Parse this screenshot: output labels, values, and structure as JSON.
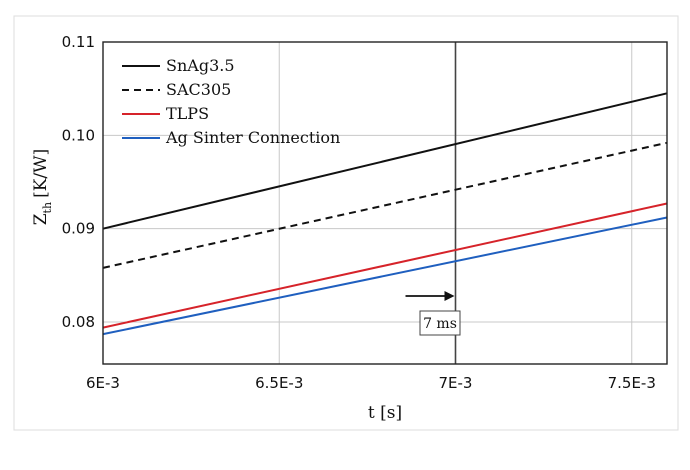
{
  "chart_data": {
    "type": "line",
    "title": "",
    "xlabel": "t [s]",
    "ylabel_main": "Z",
    "ylabel_sub": "th",
    "ylabel_unit": "[K/W]",
    "xlim": [
      0.006,
      0.0076
    ],
    "ylim": [
      0.0755,
      0.11
    ],
    "xticks": [
      0.006,
      0.0065,
      0.007,
      0.0075
    ],
    "xtick_labels": [
      "6E-3",
      "6.5E-3",
      "7E-3",
      "7.5E-3"
    ],
    "yticks": [
      0.08,
      0.09,
      0.1,
      0.11
    ],
    "ytick_labels": [
      "0.08",
      "0.09",
      "0.10",
      "0.11"
    ],
    "grid": true,
    "legend_position": "top-left",
    "series": [
      {
        "name": "SnAg3.5",
        "color": "#111111",
        "style": "solid",
        "x": [
          0.006,
          0.0076
        ],
        "y": [
          0.09,
          0.1045
        ]
      },
      {
        "name": "SAC305",
        "color": "#111111",
        "style": "dashed",
        "x": [
          0.006,
          0.0076
        ],
        "y": [
          0.0858,
          0.0992
        ]
      },
      {
        "name": "TLPS",
        "color": "#d6232a",
        "style": "solid",
        "x": [
          0.006,
          0.0076
        ],
        "y": [
          0.0794,
          0.0927
        ]
      },
      {
        "name": "Ag Sinter Connection",
        "color": "#1f5fbf",
        "style": "solid",
        "x": [
          0.006,
          0.0076
        ],
        "y": [
          0.0787,
          0.0912
        ]
      }
    ],
    "annotation": {
      "label": "7 ms",
      "x": 0.007
    }
  }
}
